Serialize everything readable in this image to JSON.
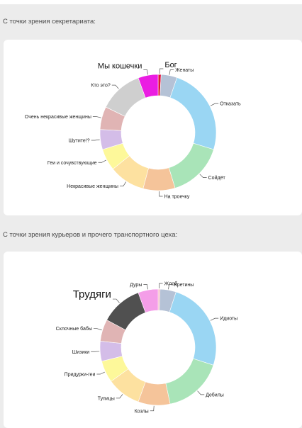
{
  "page": {
    "caption1": "С точки зрения секретариата:",
    "caption2": "С точки зрения курьеров и прочего транспортного цеха:"
  },
  "chart_data": [
    {
      "type": "pie",
      "donut": true,
      "title": "",
      "values_unit": "degrees",
      "slices": [
        {
          "label": "Бог",
          "value": 3,
          "color": "#e0103a",
          "emphasis": "big"
        },
        {
          "label": "Женаты",
          "value": 16,
          "color": "#b5c2d6"
        },
        {
          "label": "Отказать",
          "value": 88,
          "color": "#9ad6f3"
        },
        {
          "label": "Сойдёт",
          "value": 56,
          "color": "#a9e4b8"
        },
        {
          "label": "На троечку",
          "value": 32,
          "color": "#f5c49a"
        },
        {
          "label": "Некрасивые женщины",
          "value": 36,
          "color": "#fde1a0"
        },
        {
          "label": "Геи и сочувствующие",
          "value": 22,
          "color": "#fdf89a"
        },
        {
          "label": "Шутите!?",
          "value": 20,
          "color": "#d4bde8"
        },
        {
          "label": "Очень некрасивые женщины",
          "value": 23,
          "color": "#e0b4b4"
        },
        {
          "label": "Кто это?",
          "value": 44,
          "color": "#cfcfcf"
        },
        {
          "label": "Мы кошечки",
          "value": 20,
          "color": "#ea1de2",
          "emphasis": "big"
        }
      ]
    },
    {
      "type": "pie",
      "donut": true,
      "title": "",
      "values_unit": "degrees",
      "slices": [
        {
          "label": "Жлоб",
          "value": 2,
          "color": "#f5b6c4"
        },
        {
          "label": "Кретины",
          "value": 16,
          "color": "#b5c2d6"
        },
        {
          "label": "Идиоты",
          "value": 90,
          "color": "#9ad6f3"
        },
        {
          "label": "Дебилы",
          "value": 60,
          "color": "#a9e4b8"
        },
        {
          "label": "Козлы",
          "value": 32,
          "color": "#f5c49a"
        },
        {
          "label": "Тупицы",
          "value": 34,
          "color": "#fde1a0"
        },
        {
          "label": "Придурки-геи",
          "value": 22,
          "color": "#fdf89a"
        },
        {
          "label": "Шизики",
          "value": 20,
          "color": "#d4bde8"
        },
        {
          "label": "Склочные бабы",
          "value": 22,
          "color": "#e0b4b4"
        },
        {
          "label": "Трудяги",
          "value": 42,
          "color": "#505050",
          "emphasis": "huge"
        },
        {
          "label": "Дуры",
          "value": 20,
          "color": "#f49ee8"
        }
      ]
    }
  ]
}
